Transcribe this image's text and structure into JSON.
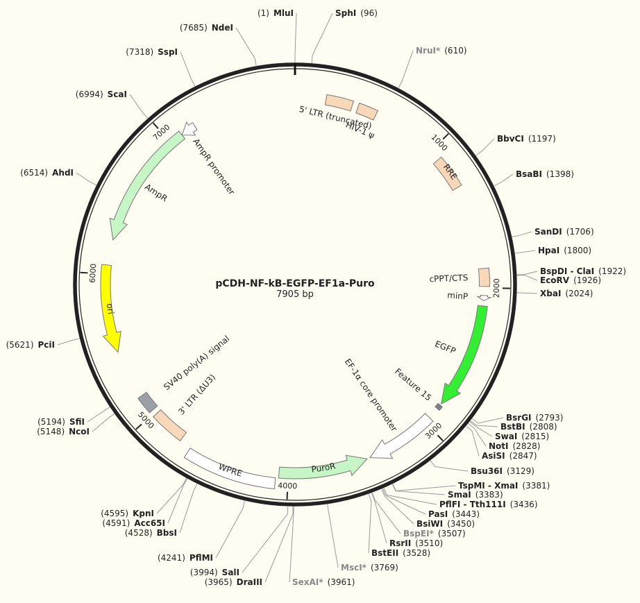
{
  "plasmid": {
    "name": "pCDH-NF-kB-EGFP-EF1a-Puro",
    "length_label": "7905 bp",
    "length": 7905
  },
  "colors": {
    "background": "#fffdf2",
    "backbone": "#222222",
    "ltr": "#f8d8b8",
    "amp": "#c6f5c6",
    "ori": "#ffff00",
    "egfp": "#33ee33",
    "puro": "#c6f5c6",
    "promoter": "#ffffff",
    "polyA": "#9aa0a6",
    "rre": "#f8d8b8",
    "feature15": "#7a8288"
  },
  "ticks": [
    {
      "label": "1000",
      "pos": 1000
    },
    {
      "label": "2000",
      "pos": 2000
    },
    {
      "label": "3000",
      "pos": 3000
    },
    {
      "label": "4000",
      "pos": 4000
    },
    {
      "label": "5000",
      "pos": 5000
    },
    {
      "label": "6000",
      "pos": 6000
    },
    {
      "label": "7000",
      "pos": 7000
    }
  ],
  "features": [
    {
      "name": "5' LTR (truncated)",
      "start": 210,
      "end": 390,
      "type": "box",
      "color": "ltr"
    },
    {
      "name": "HIV-1 ψ",
      "start": 430,
      "end": 560,
      "type": "box",
      "color": "ltr"
    },
    {
      "name": "RRE",
      "start": 1075,
      "end": 1300,
      "type": "box",
      "color": "rre"
    },
    {
      "name": "cPPT/CTS",
      "start": 1870,
      "end": 1990,
      "type": "box",
      "color": "ltr"
    },
    {
      "name": "minP",
      "start": 2050,
      "end": 2085,
      "type": "arrow",
      "color": "promoter",
      "dir": 1
    },
    {
      "name": "EGFP",
      "start": 2120,
      "end": 2839,
      "type": "arrow",
      "color": "egfp",
      "dir": 1
    },
    {
      "name": "Feature 15",
      "start": 2850,
      "end": 2880,
      "type": "box",
      "color": "feature15"
    },
    {
      "name": "EF-1α core promoter",
      "start": 2960,
      "end": 3440,
      "type": "arrow",
      "color": "promoter",
      "dir": 1
    },
    {
      "name": "PuroR",
      "start": 3460,
      "end": 4060,
      "type": "arrow",
      "color": "puro",
      "dir": -1
    },
    {
      "name": "WPRE",
      "start": 4080,
      "end": 4670,
      "type": "box",
      "color": "promoter"
    },
    {
      "name": "3' LTR (ΔU3)",
      "start": 4750,
      "end": 4985,
      "type": "box",
      "color": "ltr"
    },
    {
      "name": "SV40 poly(A) signal",
      "start": 5020,
      "end": 5140,
      "type": "box",
      "color": "polyA"
    },
    {
      "name": "ori",
      "start": 5470,
      "end": 6060,
      "type": "arrow",
      "color": "ori",
      "dir": -1
    },
    {
      "name": "AmpR",
      "start": 6232,
      "end": 7092,
      "type": "arrow",
      "color": "amp",
      "dir": -1
    },
    {
      "name": "AmpR promoter",
      "start": 7092,
      "end": 7197,
      "type": "arrow",
      "color": "promoter",
      "dir": -1
    }
  ],
  "sites": [
    {
      "name": "MluI",
      "pos": "(1)",
      "at": 1
    },
    {
      "name": "SphI",
      "pos": "(96)",
      "at": 96
    },
    {
      "name": "NruI*",
      "pos": "(610)",
      "at": 610,
      "gray": true
    },
    {
      "name": "BbvCI",
      "pos": "(1197)",
      "at": 1197
    },
    {
      "name": "BsaBI",
      "pos": "(1398)",
      "at": 1398
    },
    {
      "name": "SanDI",
      "pos": "(1706)",
      "at": 1706
    },
    {
      "name": "HpaI",
      "pos": "(1800)",
      "at": 1800
    },
    {
      "name": "BspDI - ClaI",
      "pos": "(1922)",
      "at": 1922
    },
    {
      "name": "EcoRV",
      "pos": "(1926)",
      "at": 1926
    },
    {
      "name": "XbaI",
      "pos": "(2024)",
      "at": 2024
    },
    {
      "name": "BsrGI",
      "pos": "(2793)",
      "at": 2793
    },
    {
      "name": "BstBI",
      "pos": "(2808)",
      "at": 2808
    },
    {
      "name": "SwaI",
      "pos": "(2815)",
      "at": 2815
    },
    {
      "name": "NotI",
      "pos": "(2828)",
      "at": 2828
    },
    {
      "name": "AsiSI",
      "pos": "(2847)",
      "at": 2847
    },
    {
      "name": "Bsu36I",
      "pos": "(3129)",
      "at": 3129
    },
    {
      "name": "TspMI - XmaI",
      "pos": "(3381)",
      "at": 3381
    },
    {
      "name": "SmaI",
      "pos": "(3383)",
      "at": 3383
    },
    {
      "name": "PflFI - Tth111I",
      "pos": "(3436)",
      "at": 3436
    },
    {
      "name": "PasI",
      "pos": "(3443)",
      "at": 3443
    },
    {
      "name": "BsiWI",
      "pos": "(3450)",
      "at": 3450
    },
    {
      "name": "BspEI*",
      "pos": "(3507)",
      "at": 3507,
      "gray": true
    },
    {
      "name": "RsrII",
      "pos": "(3510)",
      "at": 3510
    },
    {
      "name": "BstEII",
      "pos": "(3528)",
      "at": 3528
    },
    {
      "name": "MscI*",
      "pos": "(3769)",
      "at": 3769,
      "gray": true
    },
    {
      "name": "SexAI*",
      "pos": "(3961)",
      "at": 3961,
      "gray": true
    },
    {
      "name": "DraIII",
      "pos": "(3965)",
      "at": 3965
    },
    {
      "name": "SalI",
      "pos": "(3994)",
      "at": 3994
    },
    {
      "name": "PflMI",
      "pos": "(4241)",
      "at": 4241
    },
    {
      "name": "BbsI",
      "pos": "(4528)",
      "at": 4528
    },
    {
      "name": "Acc65I",
      "pos": "(4591)",
      "at": 4591
    },
    {
      "name": "KpnI",
      "pos": "(4595)",
      "at": 4595
    },
    {
      "name": "NcoI",
      "pos": "(5148)",
      "at": 5148
    },
    {
      "name": "SfiI",
      "pos": "(5194)",
      "at": 5194
    },
    {
      "name": "PciI",
      "pos": "(5621)",
      "at": 5621
    },
    {
      "name": "AhdI",
      "pos": "(6514)",
      "at": 6514
    },
    {
      "name": "ScaI",
      "pos": "(6994)",
      "at": 6994
    },
    {
      "name": "SspI",
      "pos": "(7318)",
      "at": 7318
    },
    {
      "name": "NdeI",
      "pos": "(7685)",
      "at": 7685
    }
  ]
}
